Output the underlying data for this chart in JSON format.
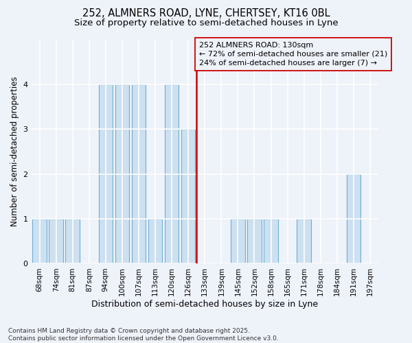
{
  "title": "252, ALMNERS ROAD, LYNE, CHERTSEY, KT16 0BL",
  "subtitle": "Size of property relative to semi-detached houses in Lyne",
  "xlabel": "Distribution of semi-detached houses by size in Lyne",
  "ylabel": "Number of semi-detached properties",
  "categories": [
    "68sqm",
    "74sqm",
    "81sqm",
    "87sqm",
    "94sqm",
    "100sqm",
    "107sqm",
    "113sqm",
    "120sqm",
    "126sqm",
    "133sqm",
    "139sqm",
    "145sqm",
    "152sqm",
    "158sqm",
    "165sqm",
    "171sqm",
    "178sqm",
    "184sqm",
    "191sqm",
    "197sqm"
  ],
  "values": [
    1,
    1,
    1,
    0,
    4,
    4,
    4,
    1,
    4,
    3,
    0,
    0,
    1,
    1,
    1,
    0,
    1,
    0,
    0,
    2,
    0
  ],
  "bar_color": "#cce0f0",
  "bar_edge_color": "#6aaed6",
  "vline_color": "#cc0000",
  "vline_x_idx": 9.5,
  "annotation_text": "252 ALMNERS ROAD: 130sqm\n← 72% of semi-detached houses are smaller (21)\n24% of semi-detached houses are larger (7) →",
  "ylim": [
    0,
    5
  ],
  "yticks": [
    0,
    1,
    2,
    3,
    4,
    5
  ],
  "background_color": "#eef2f9",
  "grid_color": "#ffffff",
  "footer": "Contains HM Land Registry data © Crown copyright and database right 2025.\nContains public sector information licensed under the Open Government Licence v3.0.",
  "title_fontsize": 10.5,
  "subtitle_fontsize": 9.5,
  "xlabel_fontsize": 9,
  "ylabel_fontsize": 8.5,
  "footer_fontsize": 6.5,
  "annot_fontsize": 8,
  "tick_fontsize": 7.5,
  "bar_width": 0.85
}
